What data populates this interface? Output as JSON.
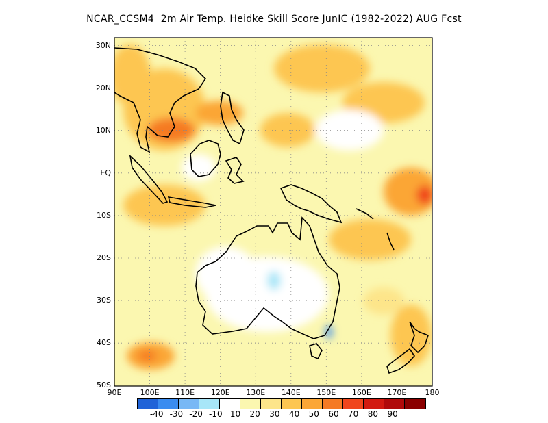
{
  "title": "NCAR_CCSM4  2m Air Temp. Heidke Skill Score JunIC (1982-2022) AUG Fcst",
  "map": {
    "lon_range": [
      90,
      180
    ],
    "lat_range": [
      -50,
      32
    ],
    "lat_labels": [
      "30N",
      "20N",
      "10N",
      "EQ",
      "10S",
      "20S",
      "30S",
      "40S",
      "50S"
    ],
    "lon_labels": [
      "90E",
      "100E",
      "110E",
      "120E",
      "130E",
      "140E",
      "150E",
      "160E",
      "170E",
      "180"
    ],
    "grid": "dotted"
  },
  "colorbar": {
    "labels": [
      "-40",
      "-30",
      "-20",
      "-10",
      "10",
      "20",
      "30",
      "40",
      "50",
      "60",
      "70",
      "80",
      "90"
    ],
    "colors": [
      "#1f63d8",
      "#3a8cf0",
      "#78b8f5",
      "#a8e6f8",
      "#ffffff",
      "#fbf7b0",
      "#fde58a",
      "#fdc651",
      "#fba636",
      "#f57a24",
      "#f0451c",
      "#d21a10",
      "#b00a0a",
      "#8a0000"
    ]
  },
  "icons": {
    "map_icon": "map-icon"
  }
}
